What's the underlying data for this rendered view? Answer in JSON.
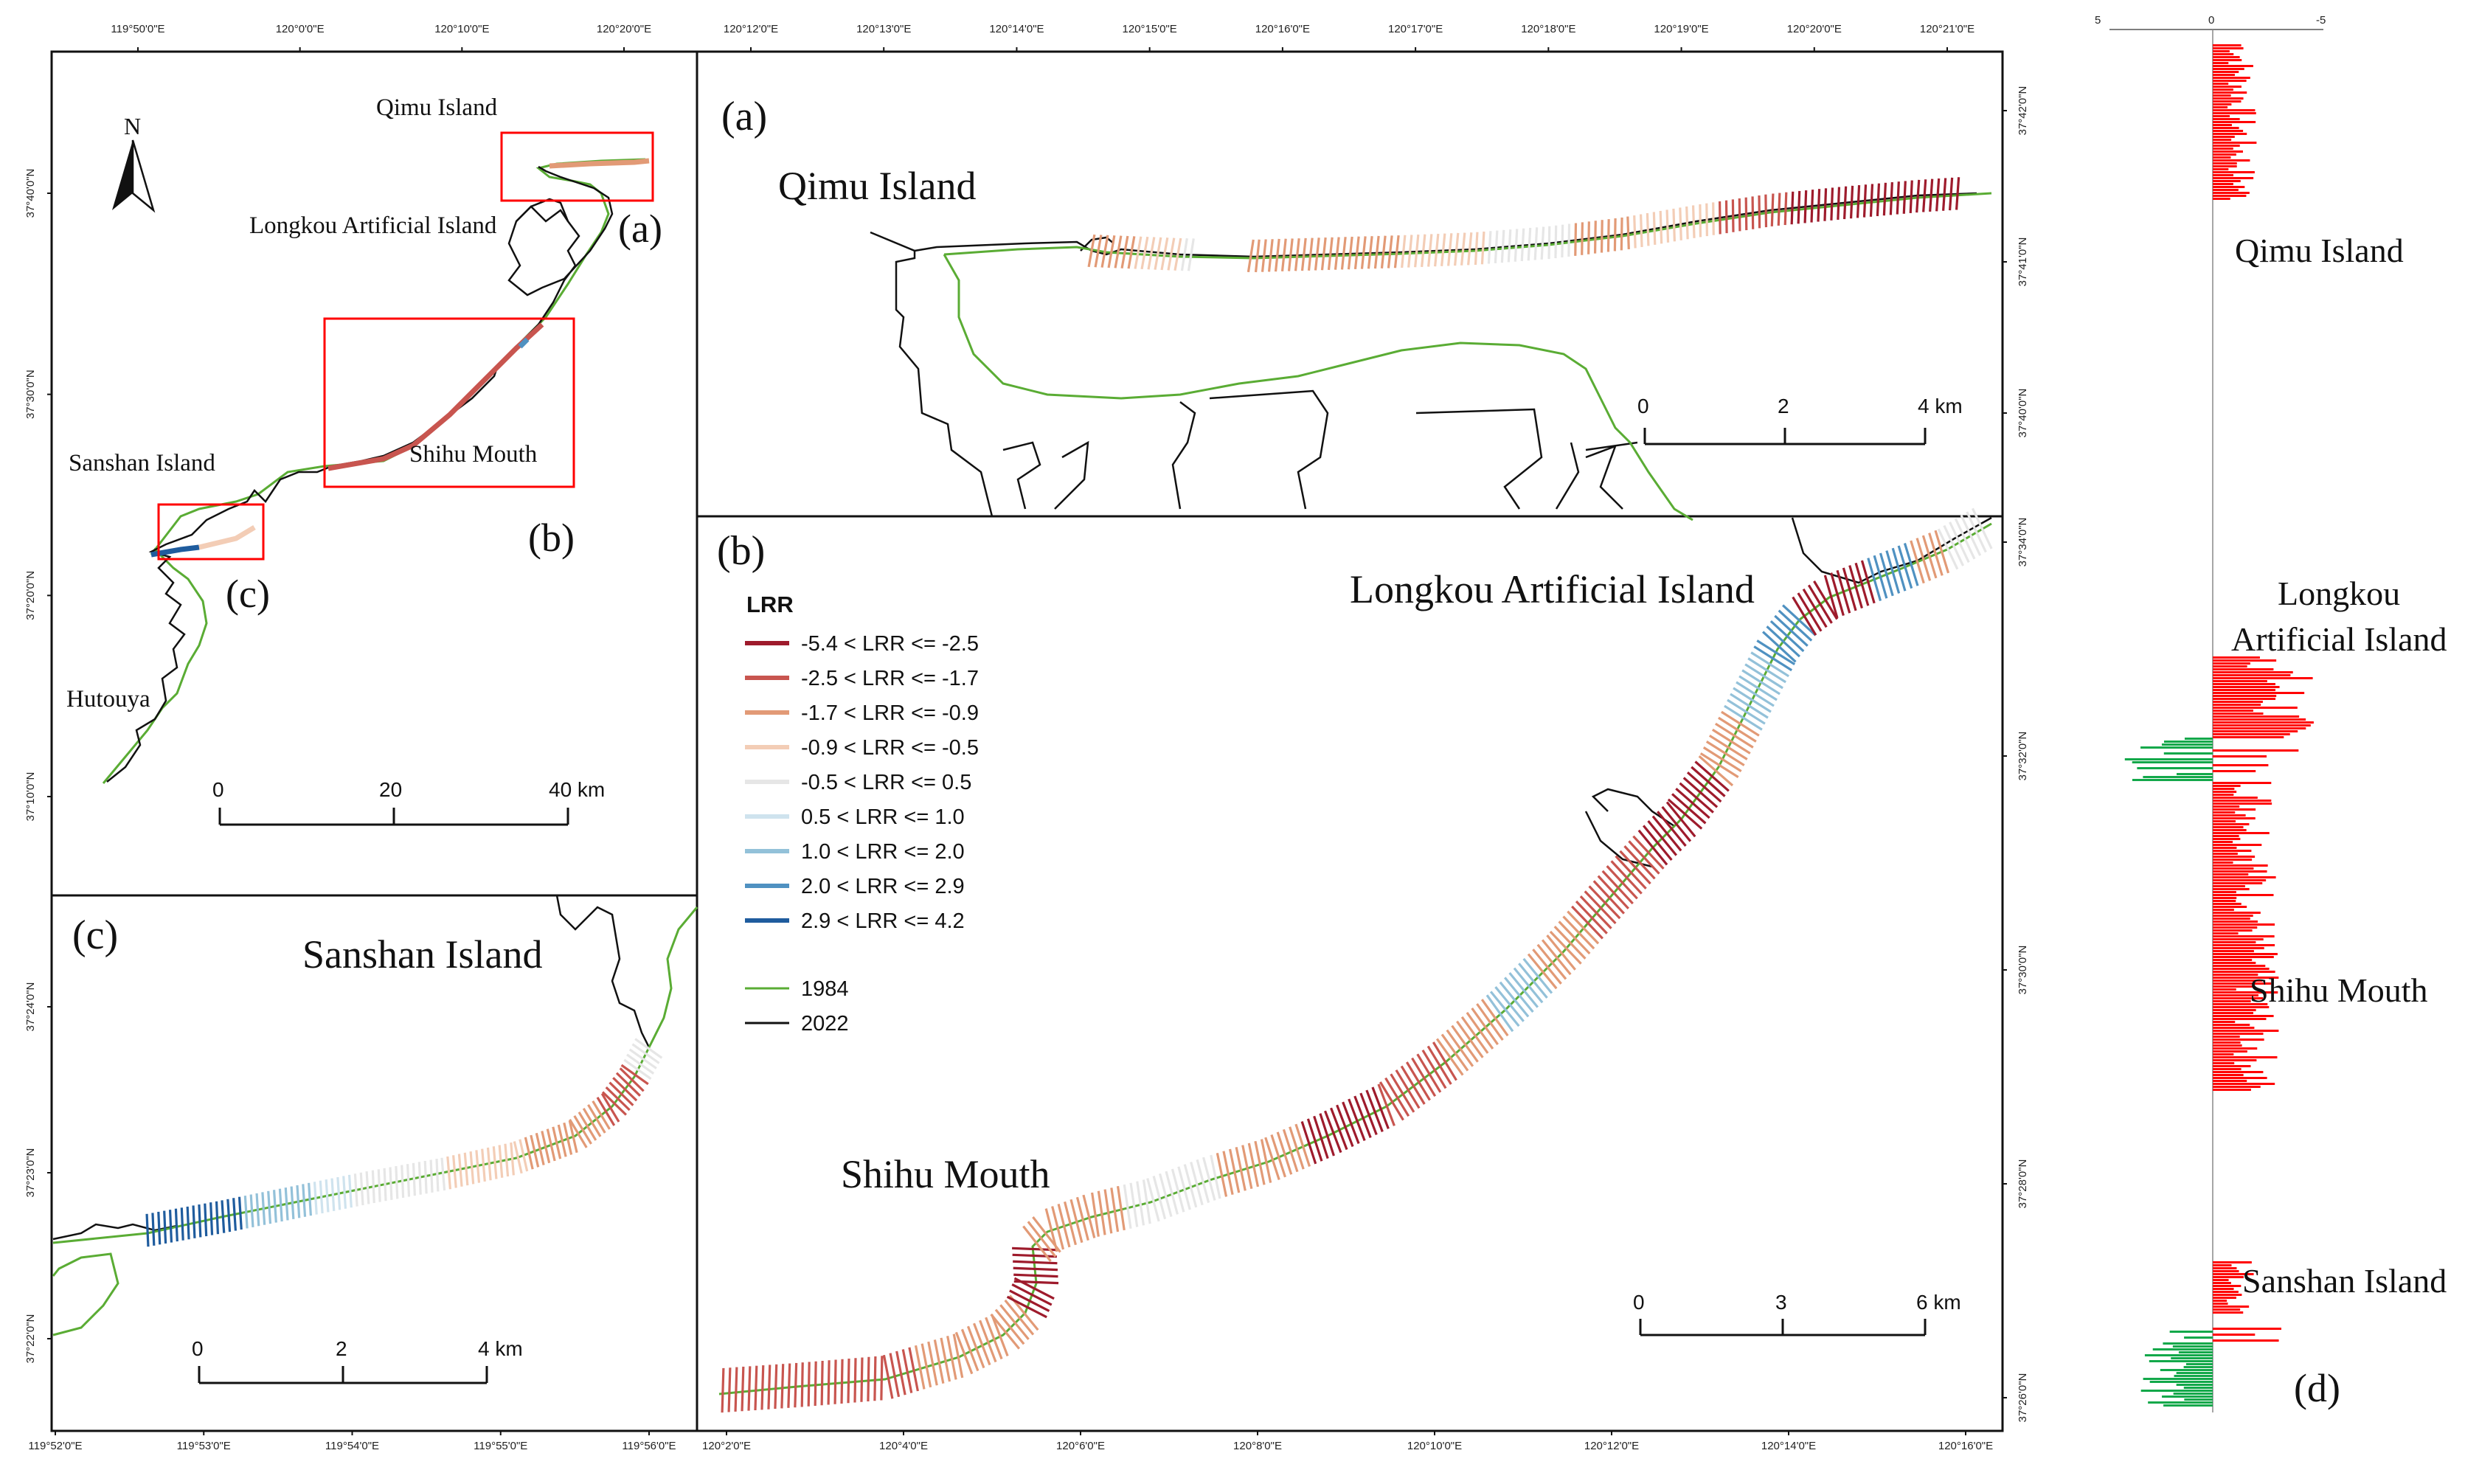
{
  "colors": {
    "lrr_classes": [
      "#9e1b2c",
      "#c8554f",
      "#e29a76",
      "#f3cdb6",
      "#e6e6e6",
      "#cfe3ee",
      "#93c1d9",
      "#4f91c1",
      "#1f5c9e"
    ],
    "line_1984": "#5aac34",
    "line_2022": "#111111",
    "box": "#ff0000",
    "bar_positive": "#ff0000",
    "bar_negative": "#12a84a"
  },
  "overview": {
    "top_ticks": [
      "119°50'0\"E",
      "120°0'0\"E",
      "120°10'0\"E",
      "120°20'0\"E"
    ],
    "left_ticks": [
      "37°40'0\"N",
      "37°30'0\"N",
      "37°20'0\"N",
      "37°10'0\"N"
    ],
    "labels": {
      "qimu": "Qimu Island",
      "longkou": "Longkou Artificial Island",
      "sanshan": "Sanshan Island",
      "shihu": "Shihu Mouth",
      "hutouya": "Hutouya"
    },
    "box_labels": {
      "a": "(a)",
      "b": "(b)",
      "c": "(c)"
    },
    "north": "N",
    "scale": {
      "ticks": [
        "0",
        "20",
        "40 km"
      ]
    }
  },
  "panel_a": {
    "label": "(a)",
    "top_ticks": [
      "120°12'0\"E",
      "120°13'0\"E",
      "120°14'0\"E",
      "120°15'0\"E",
      "120°16'0\"E",
      "120°17'0\"E",
      "120°18'0\"E",
      "120°19'0\"E",
      "120°20'0\"E",
      "120°21'0\"E"
    ],
    "right_ticks": [
      "37°42'0\"N",
      "37°41'0\"N",
      "37°40'0\"N"
    ],
    "place": "Qimu Island",
    "scale": {
      "ticks": [
        "0",
        "2",
        "4 km"
      ]
    }
  },
  "panel_b": {
    "label": "(b)",
    "bottom_ticks": [
      "120°2'0\"E",
      "120°4'0\"E",
      "120°6'0\"E",
      "120°8'0\"E",
      "120°10'0\"E",
      "120°12'0\"E",
      "120°14'0\"E",
      "120°16'0\"E"
    ],
    "right_ticks": [
      "37°34'0\"N",
      "37°32'0\"N",
      "37°30'0\"N",
      "37°28'0\"N",
      "37°26'0\"N"
    ],
    "places": {
      "longkou": "Longkou Artificial Island",
      "shihu": "Shihu Mouth"
    },
    "scale": {
      "ticks": [
        "0",
        "3",
        "6 km"
      ]
    }
  },
  "panel_c": {
    "label": "(c)",
    "bottom_ticks": [
      "119°52'0\"E",
      "119°53'0\"E",
      "119°54'0\"E",
      "119°55'0\"E",
      "119°56'0\"E"
    ],
    "left_ticks": [
      "37°24'0\"N",
      "37°23'0\"N",
      "37°22'0\"N"
    ],
    "place": "Sanshan Island",
    "scale": {
      "ticks": [
        "0",
        "2",
        "4 km"
      ]
    }
  },
  "legend": {
    "title": "LRR",
    "classes": [
      "-5.4 < LRR <= -2.5",
      "-2.5 < LRR <= -1.7",
      "-1.7 < LRR <= -0.9",
      "-0.9 < LRR <= -0.5",
      "-0.5 < LRR <= 0.5",
      "0.5 < LRR <= 1.0",
      "1.0 < LRR <= 2.0",
      "2.0 < LRR <= 2.9",
      "2.9 < LRR <= 4.2"
    ],
    "lines": [
      "1984",
      "2022"
    ]
  },
  "panel_d": {
    "label": "(d)",
    "axis_ticks": [
      "5",
      "0",
      "-5"
    ],
    "places": {
      "qimu": "Qimu Island",
      "longkou_line1": "Longkou",
      "longkou_line2": "Artificial Island",
      "shihu": "Shihu Mouth",
      "sanshan": "Sanshan Island"
    }
  }
}
